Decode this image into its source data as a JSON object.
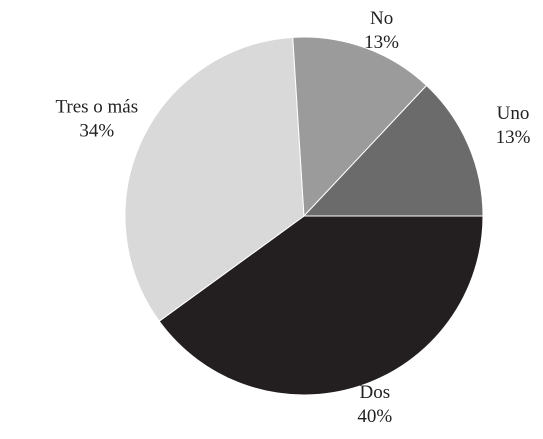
{
  "chart_data": {
    "type": "pie",
    "title": "",
    "start_angle_deg": 0,
    "direction": "clockwise",
    "slices": [
      {
        "label": "Dos",
        "percent_text": "40%",
        "value": 40,
        "color": "#231f20"
      },
      {
        "label": "Tres o más",
        "percent_text": "34%",
        "value": 34,
        "color": "#d9d9d9"
      },
      {
        "label": "No",
        "percent_text": "13%",
        "value": 13,
        "color": "#9b9b9b"
      },
      {
        "label": "Uno",
        "percent_text": "13%",
        "value": 13,
        "color": "#6b6b6b"
      }
    ],
    "legend": "none"
  }
}
